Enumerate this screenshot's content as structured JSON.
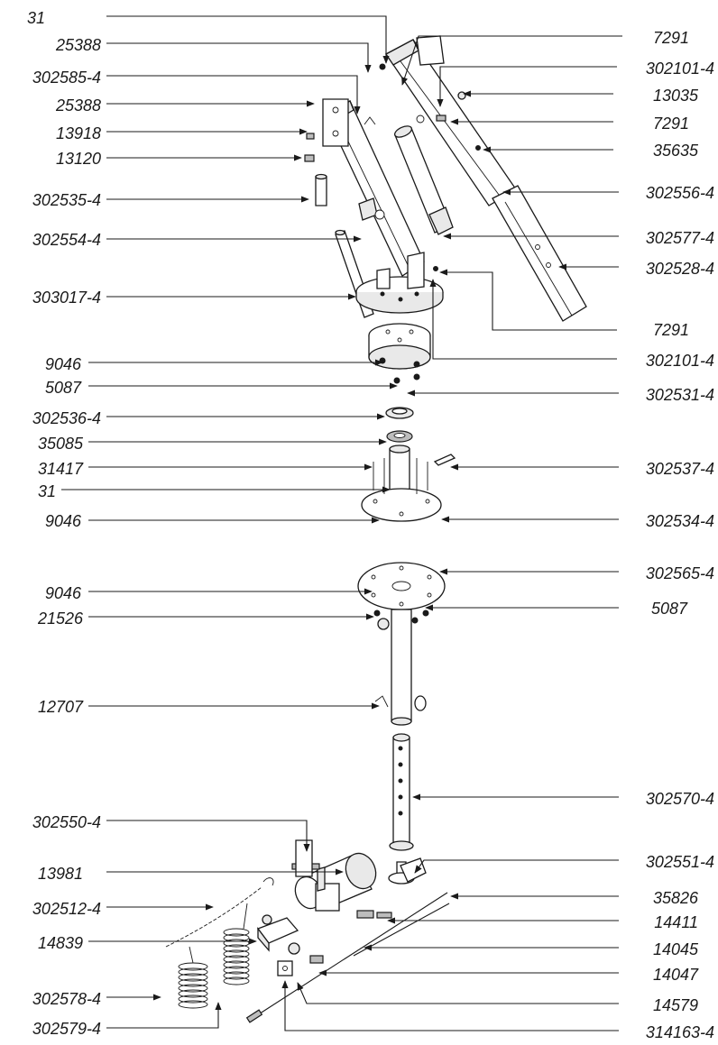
{
  "callouts": [
    {
      "id": "c1",
      "part": "31"
    },
    {
      "id": "c2",
      "part": "25388"
    },
    {
      "id": "c3",
      "part": "302585-4"
    },
    {
      "id": "c4",
      "part": "25388"
    },
    {
      "id": "c5",
      "part": "13918"
    },
    {
      "id": "c6",
      "part": "13120"
    },
    {
      "id": "c7",
      "part": "302535-4"
    },
    {
      "id": "c8",
      "part": "302554-4"
    },
    {
      "id": "c9",
      "part": "303017-4"
    },
    {
      "id": "c10",
      "part": "7291"
    },
    {
      "id": "c11",
      "part": "302101-4"
    },
    {
      "id": "c12",
      "part": "13035"
    },
    {
      "id": "c13",
      "part": "7291"
    },
    {
      "id": "c14",
      "part": "35635"
    },
    {
      "id": "c15",
      "part": "302556-4"
    },
    {
      "id": "c16",
      "part": "302577-4"
    },
    {
      "id": "c17",
      "part": "302528-4"
    },
    {
      "id": "c18",
      "part": "7291"
    },
    {
      "id": "c19",
      "part": "302101-4"
    },
    {
      "id": "c20",
      "part": "9046"
    },
    {
      "id": "c21",
      "part": "5087"
    },
    {
      "id": "c22",
      "part": "302531-4"
    },
    {
      "id": "c23",
      "part": "302536-4"
    },
    {
      "id": "c24",
      "part": "35085"
    },
    {
      "id": "c25",
      "part": "31417"
    },
    {
      "id": "c26",
      "part": "302537-4"
    },
    {
      "id": "c27",
      "part": "31"
    },
    {
      "id": "c28",
      "part": "9046"
    },
    {
      "id": "c29",
      "part": "302534-4"
    },
    {
      "id": "c30",
      "part": "9046"
    },
    {
      "id": "c31",
      "part": "302565-4"
    },
    {
      "id": "c32",
      "part": "21526"
    },
    {
      "id": "c33",
      "part": "5087"
    },
    {
      "id": "c34",
      "part": "12707"
    },
    {
      "id": "c35",
      "part": "302570-4"
    },
    {
      "id": "c36",
      "part": "302550-4"
    },
    {
      "id": "c37",
      "part": "302551-4"
    },
    {
      "id": "c38",
      "part": "13981"
    },
    {
      "id": "c39",
      "part": "302512-4"
    },
    {
      "id": "c40",
      "part": "35826"
    },
    {
      "id": "c41",
      "part": "14411"
    },
    {
      "id": "c42",
      "part": "14839"
    },
    {
      "id": "c43",
      "part": "14045"
    },
    {
      "id": "c44",
      "part": "14047"
    },
    {
      "id": "c45",
      "part": "302578-4"
    },
    {
      "id": "c46",
      "part": "14579"
    },
    {
      "id": "c47",
      "part": "302579-4"
    },
    {
      "id": "c48",
      "part": "314163-4"
    }
  ]
}
